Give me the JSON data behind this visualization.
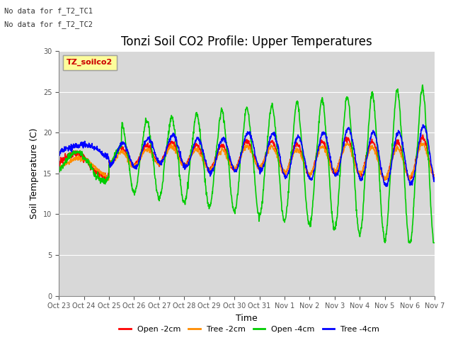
{
  "title": "Tonzi Soil CO2 Profile: Upper Temperatures",
  "xlabel": "Time",
  "ylabel": "Soil Temperature (C)",
  "xtick_labels": [
    "Oct 23",
    "Oct 24",
    "Oct 25",
    "Oct 26",
    "Oct 27",
    "Oct 28",
    "Oct 29",
    "Oct 30",
    "Oct 31",
    "Nov 1",
    "Nov 2",
    "Nov 3",
    "Nov 4",
    "Nov 5",
    "Nov 6",
    "Nov 7"
  ],
  "ylim": [
    0,
    30
  ],
  "yticks": [
    0,
    5,
    10,
    15,
    20,
    25,
    30
  ],
  "bg_color": "#e8e8e8",
  "plot_bg_color": "#d8d8d8",
  "text_annotations": [
    "No data for f_T2_TC1",
    "No data for f_T2_TC2"
  ],
  "legend_label": "TZ_soilco2",
  "series_labels": [
    "Open -2cm",
    "Tree -2cm",
    "Open -4cm",
    "Tree -4cm"
  ],
  "series_colors": [
    "#ff0000",
    "#ff8c00",
    "#00cc00",
    "#0000ff"
  ],
  "line_width": 1.2,
  "title_fontsize": 12,
  "label_fontsize": 9,
  "tick_fontsize": 8
}
